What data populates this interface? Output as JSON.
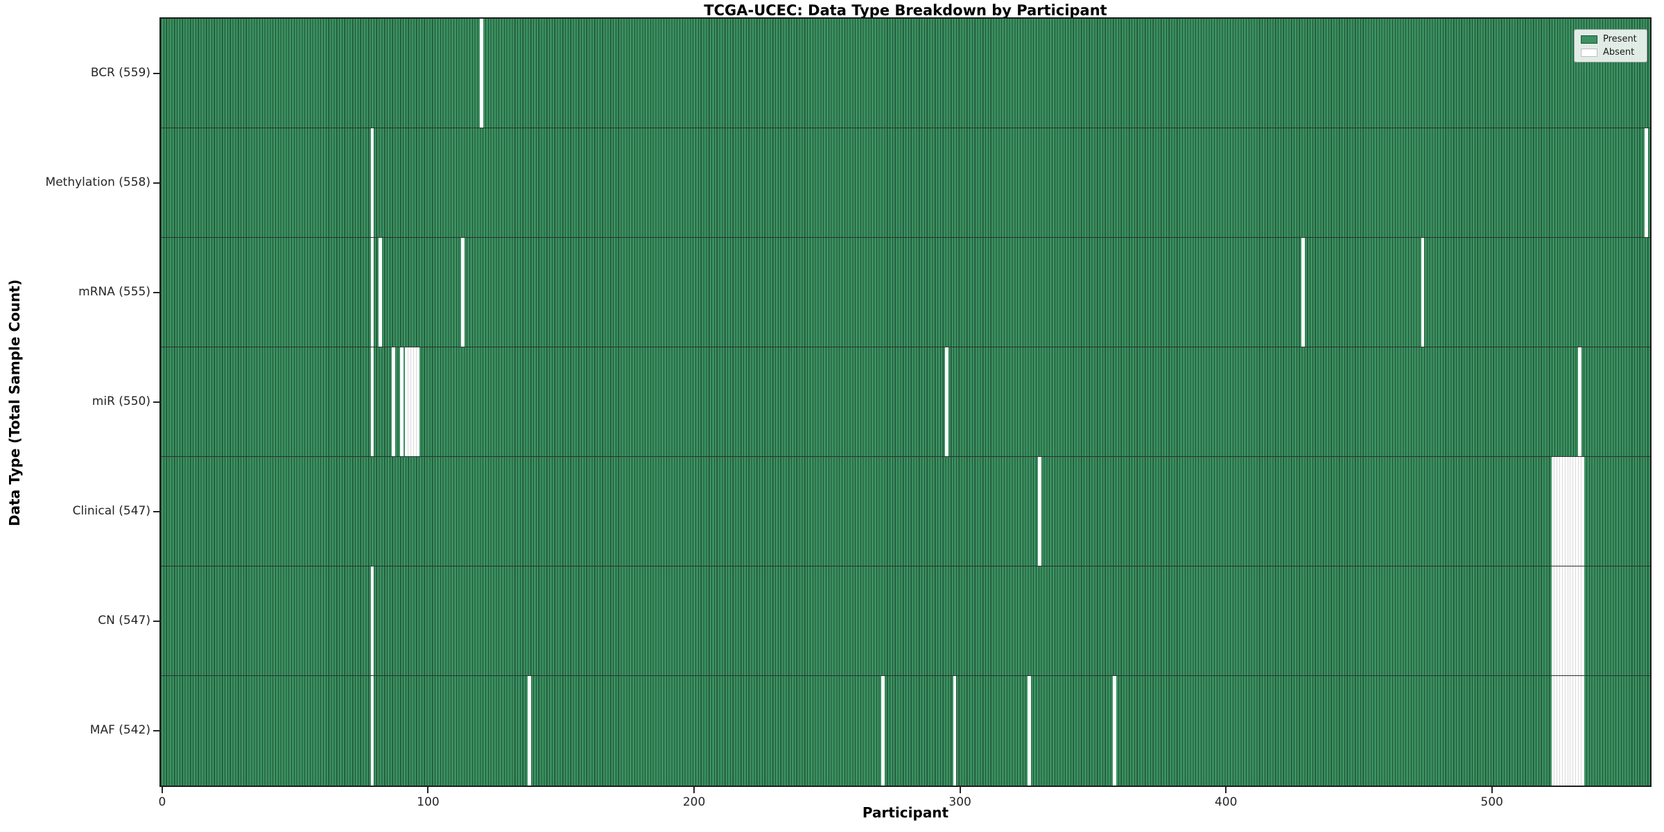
{
  "title": "TCGA-UCEC: Data Type Breakdown by Participant",
  "x_axis": {
    "label": "Participant",
    "ticks": [
      0,
      100,
      200,
      300,
      400,
      500
    ]
  },
  "y_axis": {
    "label": "Data Type (Total Sample Count)"
  },
  "legend": {
    "present_label": "Present",
    "absent_label": "Absent"
  },
  "colors": {
    "present_fill": "#3c9162",
    "bar_edge": "#1e5234",
    "absent_fill": "#ffffff",
    "row_separator": "#2f2f2f",
    "spine": "#1c1c1c"
  },
  "chart_data": {
    "type": "heatmap",
    "title": "TCGA-UCEC: Data Type Breakdown by Participant",
    "xlabel": "Participant",
    "ylabel": "Data Type (Total Sample Count)",
    "x_range": [
      0,
      559
    ],
    "n_participants": 560,
    "legend_position": "upper right",
    "legend_entries": [
      "Present",
      "Absent"
    ],
    "rows": [
      {
        "label": "BCR (559)",
        "name": "BCR",
        "present_count": 559,
        "absent_participants": [
          120
        ]
      },
      {
        "label": "Methylation (558)",
        "name": "Methylation",
        "present_count": 558,
        "absent_participants": [
          79,
          558
        ]
      },
      {
        "label": "mRNA (555)",
        "name": "mRNA",
        "present_count": 555,
        "absent_participants": [
          79,
          82,
          113,
          429,
          474
        ]
      },
      {
        "label": "miR (550)",
        "name": "miR",
        "present_count": 550,
        "absent_participants": [
          79,
          87,
          90,
          92,
          93,
          94,
          95,
          96,
          295,
          533
        ]
      },
      {
        "label": "Clinical (547)",
        "name": "Clinical",
        "present_count": 547,
        "absent_participants": [
          330,
          523,
          524,
          525,
          526,
          527,
          528,
          529,
          530,
          531,
          532,
          533,
          534
        ]
      },
      {
        "label": "CN (547)",
        "name": "CN",
        "present_count": 547,
        "absent_participants": [
          79,
          523,
          524,
          525,
          526,
          527,
          528,
          529,
          530,
          531,
          532,
          533,
          534
        ]
      },
      {
        "label": "MAF (542)",
        "name": "MAF",
        "present_count": 542,
        "absent_participants": [
          79,
          138,
          271,
          298,
          326,
          358,
          523,
          524,
          525,
          526,
          527,
          528,
          529,
          530,
          531,
          532,
          533,
          534
        ]
      }
    ]
  }
}
